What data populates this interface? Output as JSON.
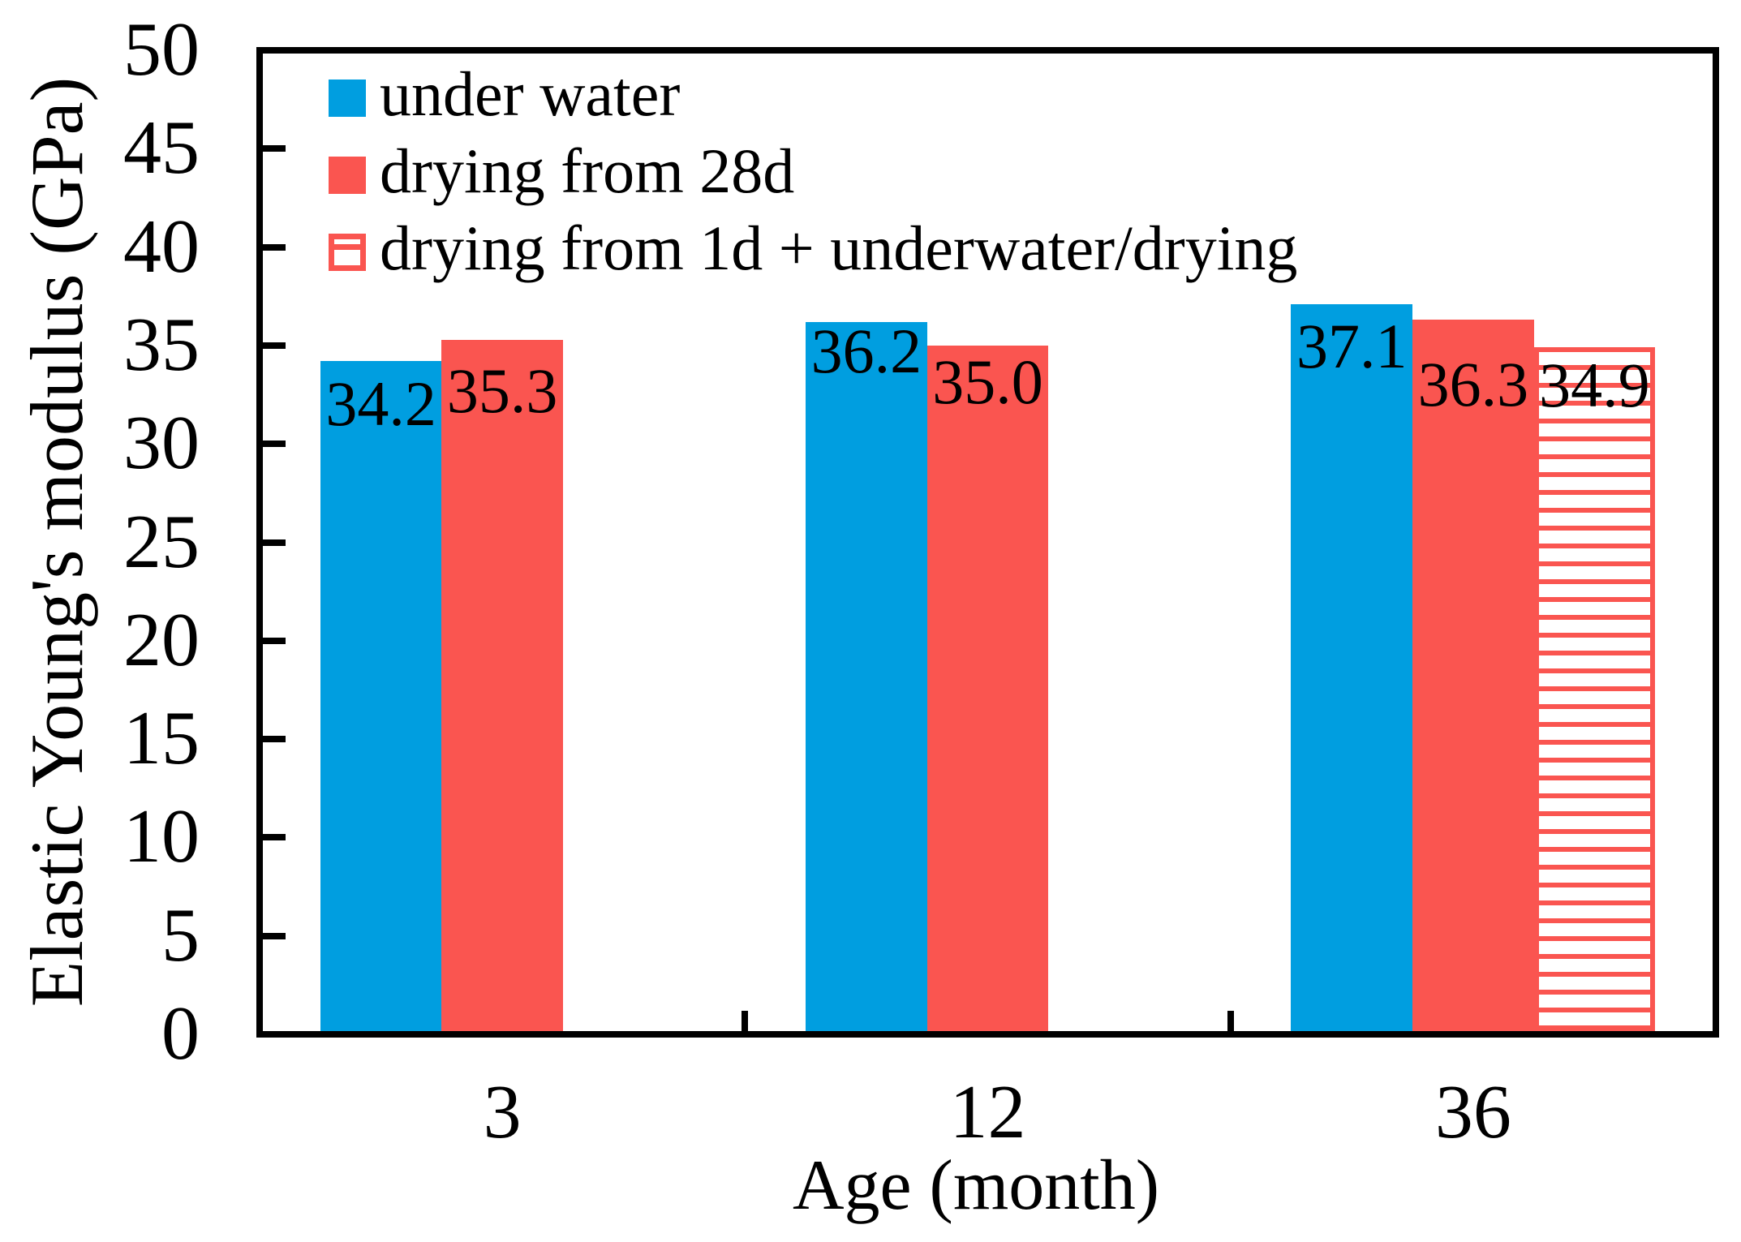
{
  "chart_data": {
    "type": "bar",
    "title": "",
    "xlabel": "Age (month)",
    "ylabel": "Elastic Young's modulus (GPa)",
    "categories": [
      "3",
      "12",
      "36"
    ],
    "series": [
      {
        "name": "under water",
        "color": "#009EE0",
        "style": "solid",
        "values": [
          34.2,
          36.2,
          37.1
        ],
        "labels": [
          "34.2",
          "36.2",
          "37.1"
        ]
      },
      {
        "name": "drying from 28d",
        "color": "#FA5550",
        "style": "solid",
        "values": [
          35.3,
          35.0,
          36.3
        ],
        "labels": [
          "35.3",
          "35.0",
          "36.3"
        ]
      },
      {
        "name": "drying from 1d + underwater/drying",
        "color": "#FA5550",
        "style": "hatch-horizontal",
        "values": [
          null,
          null,
          34.9
        ],
        "labels": [
          null,
          null,
          "34.9"
        ]
      }
    ],
    "ylim": [
      0,
      50
    ],
    "yticks": [
      0,
      5,
      10,
      15,
      20,
      25,
      30,
      35,
      40,
      45,
      50
    ],
    "grid": false,
    "legend_position": "top-left",
    "frame_color": "#000000",
    "background_color": "#FFFFFF"
  }
}
